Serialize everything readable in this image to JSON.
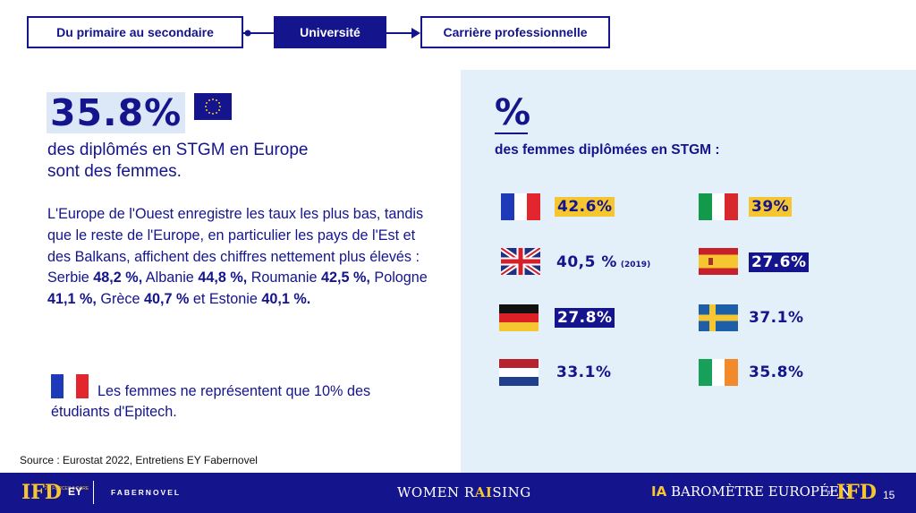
{
  "breadcrumb": {
    "step1": "Du primaire au secondaire",
    "step2": "Université",
    "step3": "Carrière professionnelle"
  },
  "left": {
    "headline_value": "35.8%",
    "headline_text": "des diplômés en STGM en Europe sont des femmes.",
    "paragraph": {
      "intro": "L'Europe de l'Ouest enregistre les taux les plus bas, tandis que le reste de l'Europe, en particulier les pays de l'Est et des Balkans, affichent des chiffres nettement plus élevés : ",
      "serbie_label": "Serbie ",
      "serbie_value": "48,2 %,",
      "albanie_label": " Albanie ",
      "albanie_value": "44,8 %,",
      "roumanie_label": " Roumanie ",
      "roumanie_value": "42,5 %,",
      "pologne_label": " Pologne ",
      "pologne_value": "41,1 %,",
      "grece_label": " Grèce ",
      "grece_value": "40,7 %",
      "estonie_label": " et Estonie ",
      "estonie_value": "40,1 %."
    },
    "note": "Les femmes ne représentent que 10% des étudiants d'Epitech.",
    "source": "Source : Eurostat 2022, Entretiens EY Fabernovel"
  },
  "panel": {
    "symbol": "%",
    "title": "des femmes diplômées en STGM :",
    "countries": [
      {
        "flag": "france-flag",
        "value": "42.6%",
        "style": "yellow"
      },
      {
        "flag": "italy-flag",
        "value": "39%",
        "style": "yellow"
      },
      {
        "flag": "uk-flag",
        "value": "40,5 %",
        "year": "(2019)",
        "style": "plain"
      },
      {
        "flag": "spain-flag",
        "value": "27.6%",
        "style": "dark"
      },
      {
        "flag": "germany-flag",
        "value": "27.8%",
        "style": "dark"
      },
      {
        "flag": "sweden-flag",
        "value": "37.1%",
        "style": "plain"
      },
      {
        "flag": "netherlands-flag",
        "value": "33.1%",
        "style": "plain"
      },
      {
        "flag": "ireland-flag",
        "value": "35.8%",
        "style": "plain"
      }
    ]
  },
  "footer": {
    "ifd_logo": "IFD",
    "ifd_tagline": "20I FORCES & DARE",
    "ey": "EY",
    "fabernovel": "FABERNOVEL",
    "women_pre": "WOMEN R",
    "women_ai": "AI",
    "women_post": "SING",
    "ia": "IA",
    "barometre": " BAROMÈTRE EUROPÉEN",
    "by": "BY",
    "page_number": "15"
  },
  "colors": {
    "navy": "#14148c",
    "yellow": "#f6c631",
    "panel_bg": "#e3eff9"
  }
}
